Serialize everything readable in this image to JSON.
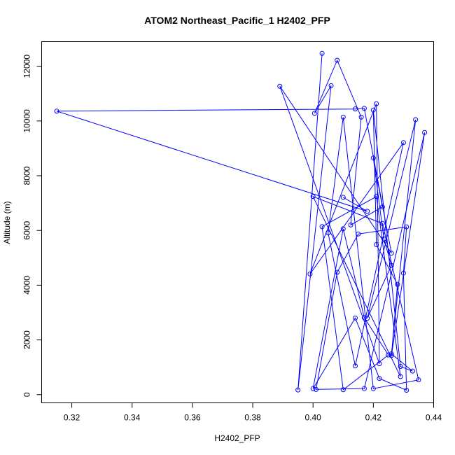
{
  "chart_data": {
    "type": "line",
    "title": "ATOM2 Northeast_Pacific_1 H2402_PFP",
    "xlabel": "H2402_PFP",
    "ylabel": "Altitude (m)",
    "xlim": [
      0.31,
      0.44
    ],
    "ylim": [
      -300,
      12900
    ],
    "xticks": [
      0.32,
      0.34,
      0.36,
      0.38,
      0.4,
      0.42,
      0.44
    ],
    "xtick_labels": [
      "0.32",
      "0.34",
      "0.36",
      "0.38",
      "0.40",
      "0.42",
      "0.44"
    ],
    "yticks": [
      0,
      2000,
      4000,
      6000,
      8000,
      10000,
      12000
    ],
    "ytick_labels": [
      "0",
      "2000",
      "4000",
      "6000",
      "8000",
      "10000",
      "12000"
    ],
    "grid": false,
    "color": "#0000ff",
    "series": [
      {
        "x": [
          0.403,
          0.395,
          0.406,
          0.4005,
          0.408,
          0.416,
          0.4125,
          0.423,
          0.42,
          0.4235,
          0.426,
          0.418,
          0.434,
          0.426,
          0.433,
          0.429,
          0.42,
          0.421,
          0.428,
          0.426,
          0.437,
          0.417,
          0.401,
          0.408,
          0.415,
          0.431,
          0.43,
          0.431,
          0.422,
          0.414,
          0.4,
          0.41,
          0.417,
          0.425,
          0.41,
          0.403,
          0.421,
          0.429,
          0.4,
          0.423,
          0.435,
          0.42,
          0.41,
          0.405,
          0.414,
          0.43,
          0.399,
          0.421,
          0.422,
          0.389,
          0.426,
          0.417,
          0.414,
          0.315,
          0.418,
          0.41
        ],
        "y": [
          12470,
          170,
          11290,
          10280,
          12220,
          10140,
          6200,
          6860,
          8650,
          5690,
          4720,
          2790,
          10050,
          1490,
          860,
          1030,
          10400,
          5480,
          4030,
          1430,
          9580,
          220,
          190,
          4470,
          5870,
          6130,
          4440,
          160,
          590,
          2800,
          220,
          6060,
          2810,
          1450,
          180,
          6140,
          7240,
          660,
          7240,
          6260,
          540,
          220,
          10140,
          5910,
          1050,
          9210,
          4410,
          10630,
          1130,
          11270,
          5170,
          10460,
          10440,
          10360,
          6700,
          7210
        ]
      }
    ]
  }
}
